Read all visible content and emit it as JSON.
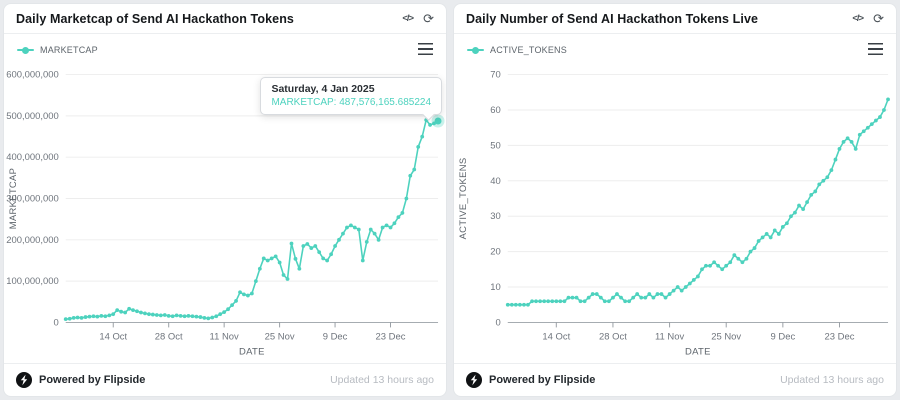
{
  "accent_color": "#4dd2be",
  "panels": [
    {
      "title": "Daily Marketcap of Send AI Hackathon Tokens",
      "legend_label": "MARKETCAP",
      "tooltip": {
        "date_label": "Saturday, 4 Jan 2025",
        "value_label": "MARKETCAP: 487,576,165.685224"
      }
    },
    {
      "title": "Daily Number of Send AI Hackathon Tokens Live",
      "legend_label": "ACTIVE_TOKENS",
      "tooltip": null
    }
  ],
  "icons": {
    "code": "</>",
    "refresh": "⟳"
  },
  "footer": {
    "powered_by": "Powered by Flipside",
    "updated": "Updated 13 hours ago"
  },
  "chart_data": [
    {
      "type": "line",
      "title": "Daily Marketcap of Send AI Hackathon Tokens",
      "xlabel": "DATE",
      "ylabel": "MARKETCAP",
      "x_start_date": "2024-10-02",
      "x_end_date": "2025-01-04",
      "x_tick_labels": [
        "14 Oct",
        "28 Oct",
        "11 Nov",
        "25 Nov",
        "9 Dec",
        "23 Dec"
      ],
      "x_tick_day_indices": [
        12,
        26,
        40,
        54,
        68,
        82
      ],
      "y_unit": "USD (values in millions)",
      "ylim": [
        0,
        600
      ],
      "y_ticks": [
        {
          "v": 0,
          "label": "0"
        },
        {
          "v": 100,
          "label": "100,000,000"
        },
        {
          "v": 200,
          "label": "200,000,000"
        },
        {
          "v": 300,
          "label": "300,000,000"
        },
        {
          "v": 400,
          "label": "400,000,000"
        },
        {
          "v": 500,
          "label": "500,000,000"
        },
        {
          "v": 600,
          "label": "600,000,000"
        }
      ],
      "legend_position": "top-left",
      "grid": true,
      "highlight_last_point": true,
      "last_point_exact_value": 487576165.685224,
      "series": [
        {
          "name": "MARKETCAP",
          "values_millions": [
            8,
            9,
            11,
            12,
            11,
            13,
            14,
            15,
            14,
            16,
            15,
            17,
            20,
            30,
            26,
            24,
            33,
            30,
            27,
            24,
            22,
            20,
            19,
            18,
            17,
            18,
            16,
            15,
            17,
            16,
            15,
            16,
            15,
            14,
            13,
            11,
            10,
            12,
            15,
            20,
            25,
            32,
            42,
            52,
            73,
            68,
            65,
            70,
            100,
            130,
            155,
            150,
            155,
            160,
            145,
            115,
            105,
            191,
            154,
            130,
            185,
            190,
            180,
            185,
            170,
            155,
            150,
            165,
            185,
            200,
            215,
            230,
            235,
            230,
            225,
            150,
            195,
            225,
            215,
            200,
            230,
            235,
            230,
            240,
            255,
            265,
            300,
            355,
            370,
            425,
            450,
            490,
            478,
            482,
            487.576165685224
          ]
        }
      ]
    },
    {
      "type": "line",
      "title": "Daily Number of Send AI Hackathon Tokens Live",
      "xlabel": "DATE",
      "ylabel": "ACTIVE_TOKENS",
      "x_start_date": "2024-10-02",
      "x_end_date": "2025-01-04",
      "x_tick_labels": [
        "14 Oct",
        "28 Oct",
        "11 Nov",
        "25 Nov",
        "9 Dec",
        "23 Dec"
      ],
      "x_tick_day_indices": [
        12,
        26,
        40,
        54,
        68,
        82
      ],
      "y_unit": "tokens",
      "ylim": [
        0,
        70
      ],
      "y_ticks": [
        {
          "v": 0,
          "label": "0"
        },
        {
          "v": 10,
          "label": "10"
        },
        {
          "v": 20,
          "label": "20"
        },
        {
          "v": 30,
          "label": "30"
        },
        {
          "v": 40,
          "label": "40"
        },
        {
          "v": 50,
          "label": "50"
        },
        {
          "v": 60,
          "label": "60"
        },
        {
          "v": 70,
          "label": "70"
        }
      ],
      "legend_position": "top-left",
      "grid": true,
      "highlight_last_point": false,
      "series": [
        {
          "name": "ACTIVE_TOKENS",
          "values_millions": [
            5,
            5,
            5,
            5,
            5,
            5,
            6,
            6,
            6,
            6,
            6,
            6,
            6,
            6,
            6,
            7,
            7,
            7,
            6,
            6,
            7,
            8,
            8,
            7,
            6,
            6,
            7,
            8,
            7,
            6,
            6,
            7,
            8,
            7,
            7,
            8,
            7,
            8,
            8,
            7,
            8,
            9,
            10,
            9,
            10,
            11,
            12,
            13,
            15,
            16,
            16,
            17,
            16,
            15,
            16,
            17,
            19,
            18,
            17,
            18,
            20,
            21,
            23,
            24,
            25,
            24,
            26,
            25,
            27,
            28,
            30,
            31,
            33,
            32,
            34,
            36,
            37,
            39,
            40,
            41,
            43,
            46,
            49,
            51,
            52,
            51,
            49,
            53,
            54,
            55,
            56,
            57,
            58,
            60,
            63
          ]
        }
      ]
    }
  ]
}
